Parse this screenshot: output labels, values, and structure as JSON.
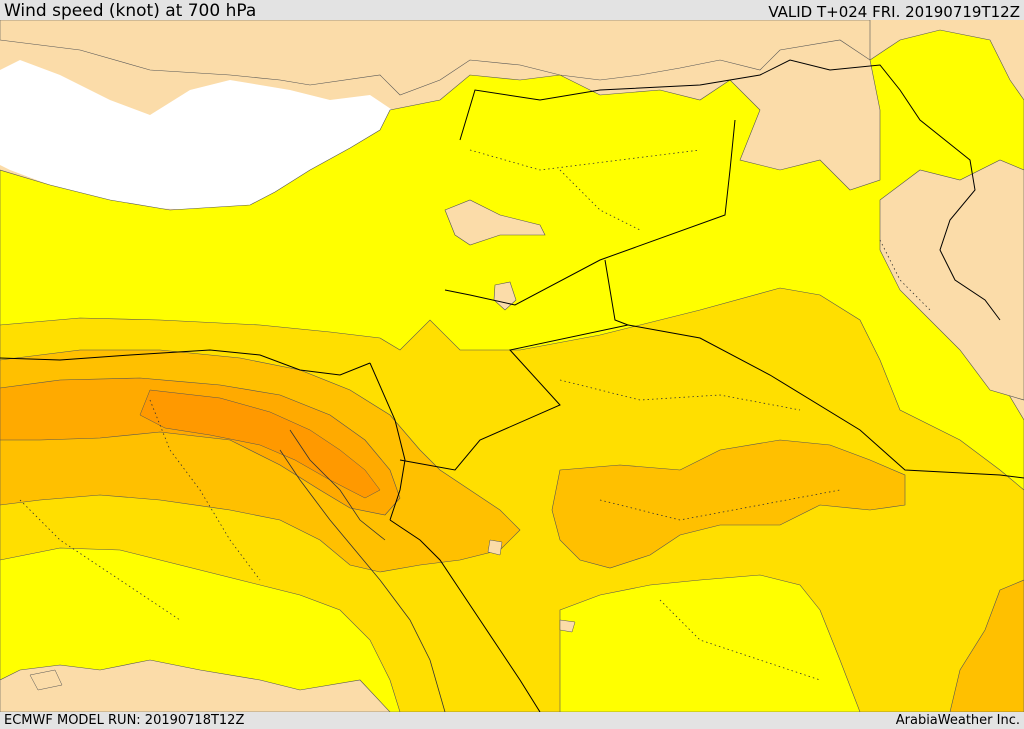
{
  "header": {
    "title": "Wind speed (knot) at 700 hPa",
    "valid": "VALID T+024 FRI. 20190719T12Z"
  },
  "footer": {
    "model_run": "ECMWF MODEL RUN: 20190718T12Z",
    "credit": "ArabiaWeather Inc."
  },
  "colors": {
    "land_calm": "#fbdca9",
    "sea": "#ffffff",
    "band_1": "#ffff00",
    "band_2": "#ffdf00",
    "band_3": "#ffc000",
    "band_4": "#ffaa00",
    "band_5": "#ff9900",
    "border_line": "#000000"
  }
}
